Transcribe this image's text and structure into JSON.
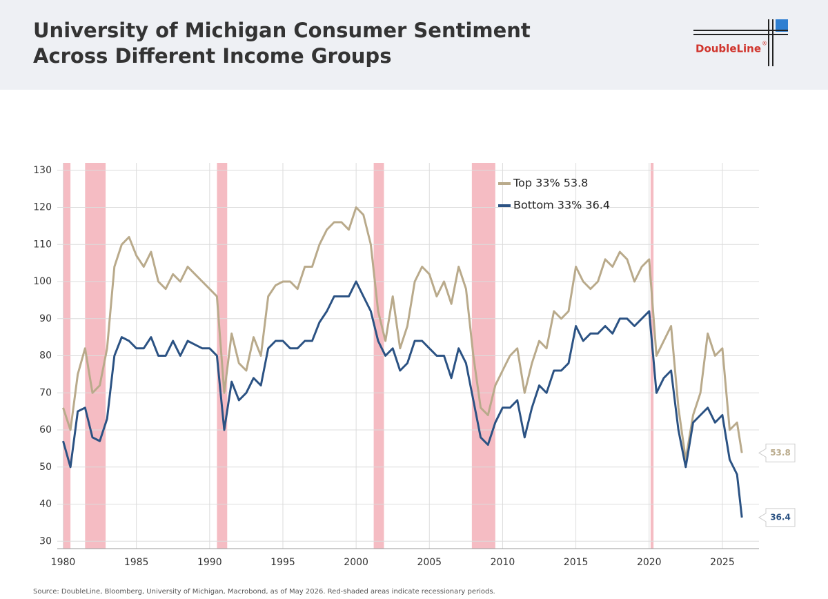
{
  "header": {
    "title_line1": "University of Michigan Consumer Sentiment",
    "title_line2": "Across Different Income Groups",
    "logo": "DoubleLine",
    "logo_mark": "®"
  },
  "chart_data": {
    "type": "line",
    "x": [
      1980.0,
      1980.5,
      1981.0,
      1981.5,
      1982.0,
      1982.5,
      1983.0,
      1983.5,
      1984.0,
      1984.5,
      1985.0,
      1985.5,
      1986.0,
      1986.5,
      1987.0,
      1987.5,
      1988.0,
      1988.5,
      1989.0,
      1989.5,
      1990.0,
      1990.5,
      1991.0,
      1991.5,
      1992.0,
      1992.5,
      1993.0,
      1993.5,
      1994.0,
      1994.5,
      1995.0,
      1995.5,
      1996.0,
      1996.5,
      1997.0,
      1997.5,
      1998.0,
      1998.5,
      1999.0,
      1999.5,
      2000.0,
      2000.5,
      2001.0,
      2001.5,
      2002.0,
      2002.5,
      2003.0,
      2003.5,
      2004.0,
      2004.5,
      2005.0,
      2005.5,
      2006.0,
      2006.5,
      2007.0,
      2007.5,
      2008.0,
      2008.5,
      2009.0,
      2009.5,
      2010.0,
      2010.5,
      2011.0,
      2011.5,
      2012.0,
      2012.5,
      2013.0,
      2013.5,
      2014.0,
      2014.5,
      2015.0,
      2015.5,
      2016.0,
      2016.5,
      2017.0,
      2017.5,
      2018.0,
      2018.5,
      2019.0,
      2019.5,
      2020.0,
      2020.5,
      2021.0,
      2021.5,
      2022.0,
      2022.5,
      2023.0,
      2023.5,
      2024.0,
      2024.5,
      2025.0,
      2025.5,
      2026.0,
      2026.33
    ],
    "series": [
      {
        "name": "Top 33% 53.8",
        "color": "#b9aa8b",
        "values": [
          66,
          60,
          75,
          82,
          70,
          72,
          82,
          104,
          110,
          112,
          107,
          104,
          108,
          100,
          98,
          102,
          100,
          104,
          102,
          100,
          98,
          96,
          70,
          86,
          78,
          76,
          85,
          80,
          96,
          99,
          100,
          100,
          98,
          104,
          104,
          110,
          114,
          116,
          116,
          114,
          120,
          118,
          110,
          92,
          84,
          96,
          82,
          88,
          100,
          104,
          102,
          96,
          100,
          94,
          104,
          98,
          80,
          66,
          64,
          72,
          76,
          80,
          82,
          70,
          78,
          84,
          82,
          92,
          90,
          92,
          104,
          100,
          98,
          100,
          106,
          104,
          108,
          106,
          100,
          104,
          106,
          80,
          84,
          88,
          66,
          52,
          64,
          70,
          86,
          80,
          82,
          60,
          62,
          53.8
        ]
      },
      {
        "name": "Bottom 33% 36.4",
        "color": "#2b5283",
        "values": [
          57,
          50,
          65,
          66,
          58,
          57,
          63,
          80,
          85,
          84,
          82,
          82,
          85,
          80,
          80,
          84,
          80,
          84,
          83,
          82,
          82,
          80,
          60,
          73,
          68,
          70,
          74,
          72,
          82,
          84,
          84,
          82,
          82,
          84,
          84,
          89,
          92,
          96,
          96,
          96,
          100,
          96,
          92,
          84,
          80,
          82,
          76,
          78,
          84,
          84,
          82,
          80,
          80,
          74,
          82,
          78,
          68,
          58,
          56,
          62,
          66,
          66,
          68,
          58,
          66,
          72,
          70,
          76,
          76,
          78,
          88,
          84,
          86,
          86,
          88,
          86,
          90,
          90,
          88,
          90,
          92,
          70,
          74,
          76,
          60,
          50,
          62,
          64,
          66,
          62,
          64,
          52,
          48,
          36.4
        ]
      }
    ],
    "recessions": [
      [
        1980.0,
        1980.5
      ],
      [
        1981.5,
        1982.9
      ],
      [
        1990.5,
        1991.2
      ],
      [
        2001.2,
        2001.9
      ],
      [
        2007.9,
        2009.5
      ],
      [
        2020.1,
        2020.3
      ]
    ],
    "recession_color": "#f5bcc3",
    "xlim": [
      1979.6,
      2027.5
    ],
    "ylim": [
      28,
      132
    ],
    "xticks": [
      1980,
      1985,
      1990,
      1995,
      2000,
      2005,
      2010,
      2015,
      2020,
      2025
    ],
    "yticks": [
      30,
      40,
      50,
      60,
      70,
      80,
      90,
      100,
      110,
      120,
      130
    ],
    "grid": true,
    "legend": "top-right",
    "source": "Source: DoubleLine, Bloomberg, University of Michigan, Macrobond, as of May 2026. Red-shaded areas indicate recessionary periods."
  }
}
